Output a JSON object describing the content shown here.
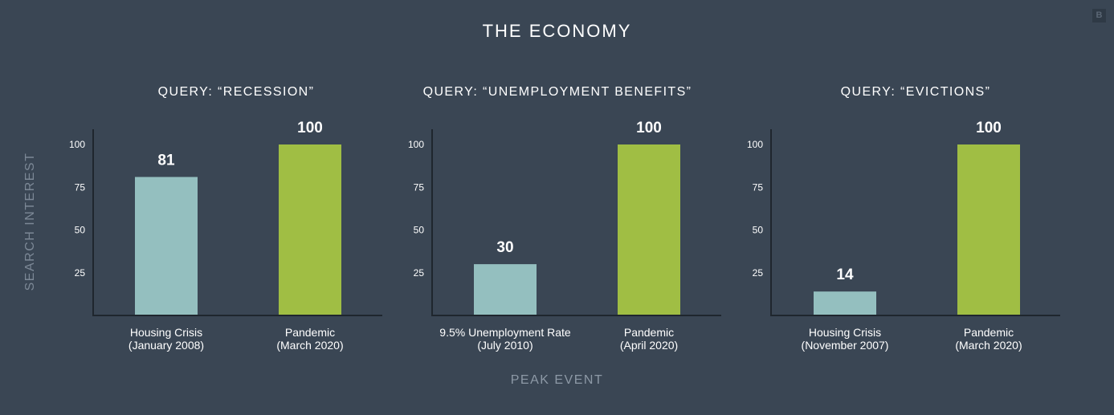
{
  "title": "THE ECONOMY",
  "y_axis_title": "SEARCH INTEREST",
  "x_axis_title": "PEAK EVENT",
  "logo_text": "B",
  "colors": {
    "background": "#3a4654",
    "bar_past": "#94bfbf",
    "bar_pandemic": "#a0be44",
    "axis": "#1f262e"
  },
  "chart_data": [
    {
      "type": "bar",
      "title": "QUERY: “RECESSION”",
      "categories": [
        {
          "line1": "Housing Crisis",
          "line2": "(January 2008)"
        },
        {
          "line1": "Pandemic",
          "line2": "(March 2020)"
        }
      ],
      "values": [
        81,
        100
      ],
      "value_labels": [
        "81",
        "100"
      ],
      "yticks": [
        "25",
        "50",
        "75",
        "100"
      ],
      "ylim": [
        0,
        100
      ]
    },
    {
      "type": "bar",
      "title": "QUERY: “UNEMPLOYMENT BENEFITS”",
      "categories": [
        {
          "line1": "9.5% Unemployment Rate",
          "line2": "(July 2010)"
        },
        {
          "line1": "Pandemic",
          "line2": "(April 2020)"
        }
      ],
      "values": [
        30,
        100
      ],
      "value_labels": [
        "30",
        "100"
      ],
      "yticks": [
        "25",
        "50",
        "75",
        "100"
      ],
      "ylim": [
        0,
        100
      ]
    },
    {
      "type": "bar",
      "title": "QUERY: “EVICTIONS”",
      "categories": [
        {
          "line1": "Housing Crisis",
          "line2": "(November 2007)"
        },
        {
          "line1": "Pandemic",
          "line2": "(March 2020)"
        }
      ],
      "values": [
        14,
        100
      ],
      "value_labels": [
        "14",
        "100"
      ],
      "yticks": [
        "25",
        "50",
        "75",
        "100"
      ],
      "ylim": [
        0,
        100
      ]
    }
  ]
}
